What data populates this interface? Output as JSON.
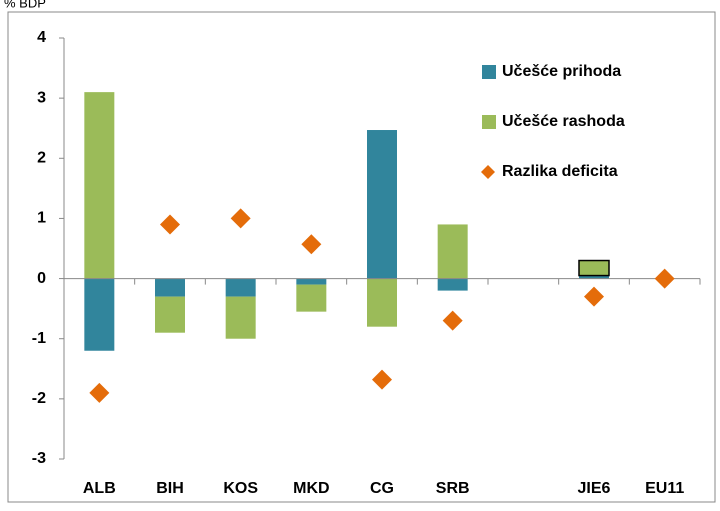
{
  "chart_data": {
    "type": "bar",
    "y_label": "% BDP",
    "categories": [
      "ALB",
      "BIH",
      "KOS",
      "MKD",
      "CG",
      "SRB",
      null,
      "JIE6",
      "EU11"
    ],
    "series": [
      {
        "name": "Učešće prihoda",
        "color": "#31859c",
        "values": [
          -1.2,
          -0.3,
          -0.3,
          -0.1,
          2.47,
          -0.2,
          null,
          0.05,
          0
        ]
      },
      {
        "name": "Učešće rashoda",
        "color": "#9bbb59",
        "values": [
          3.1,
          -0.6,
          -0.7,
          -0.45,
          -0.8,
          0.9,
          null,
          0.25,
          0
        ]
      },
      {
        "name": "Razlika deficita",
        "color": "#e46c0a",
        "type": "scatter",
        "values": [
          -1.9,
          0.9,
          1.0,
          0.57,
          -1.68,
          -0.7,
          null,
          -0.3,
          0
        ]
      }
    ],
    "ylim": [
      -3,
      4
    ],
    "yticks": [
      -3,
      -2,
      -1,
      0,
      1,
      2,
      3,
      4
    ],
    "stacked": true,
    "legend": "upper right"
  }
}
